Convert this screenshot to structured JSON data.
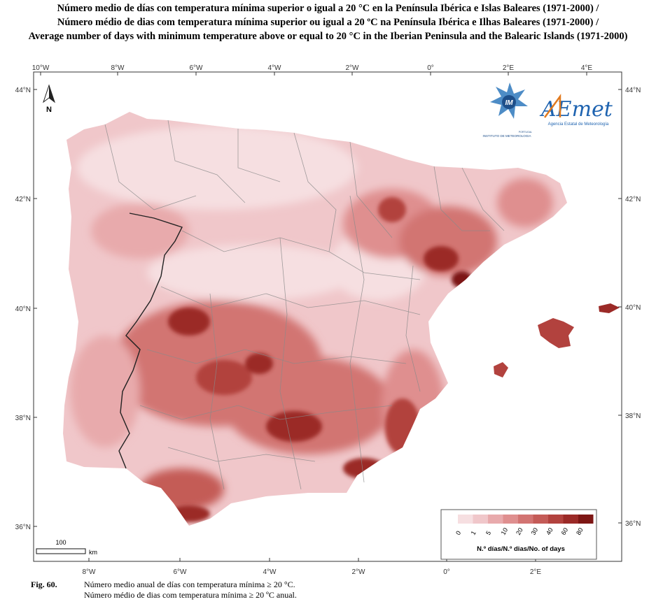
{
  "titles": [
    "Número medio de días con temperatura mínima superior o igual a 20 °C en la Península Ibérica e Islas Baleares (1971-2000) /",
    "Número médio de dias com temperatura mínima superior ou igual a 20 ºC na Península Ibérica e Ilhas Baleares (1971-2000) /",
    "Average number of days with minimum temperature above or equal to 20 °C in the Iberian Peninsula and the Balearic Islands (1971-2000)"
  ],
  "axes": {
    "top_lon": [
      "10°W",
      "8°W",
      "6°W",
      "4°W",
      "2°W",
      "0°",
      "2°E",
      "4°E"
    ],
    "bottom_lon": [
      "8°W",
      "6°W",
      "4°W",
      "2°W",
      "0°",
      "2°E"
    ],
    "left_lat": [
      "44°N",
      "42°N",
      "40°N",
      "38°N",
      "36°N"
    ],
    "right_lat": [
      "44°N",
      "42°N",
      "40°N",
      "38°N",
      "36°N"
    ]
  },
  "north_arrow": {
    "label": "N",
    "icon": "north-arrow-icon"
  },
  "logos": {
    "im": {
      "text": "IM",
      "subtitle": "INSTITUTO DE METEOROLOGIA",
      "country": "PORTUGAL"
    },
    "aemet": {
      "text": "AEmet",
      "subtitle": "Agencia Estatal de Meteorología"
    }
  },
  "legend": {
    "classes": [
      "0",
      "1",
      "5",
      "10",
      "20",
      "30",
      "40",
      "60",
      "80"
    ],
    "colors": [
      "#f6dfe1",
      "#f0c7ca",
      "#e8aaac",
      "#df8f8f",
      "#d27472",
      "#c45b57",
      "#b2423e",
      "#9b2a27",
      "#7d1614"
    ],
    "caption": "N.º días/N.º dias/No. of days"
  },
  "scalebar": {
    "value": "100",
    "unit": "km"
  },
  "caption": {
    "fig": "Fig. 60.",
    "line1": "Número medio anual de días con temperatura mínima ≥ 20 °C.",
    "line2": "Número médio de dias com temperatura mínima ≥ 20 ºC anual."
  },
  "colors": {
    "sea": "#ffffff",
    "frame": "#333333",
    "border": "#222222",
    "province": "#8a8a8a"
  }
}
